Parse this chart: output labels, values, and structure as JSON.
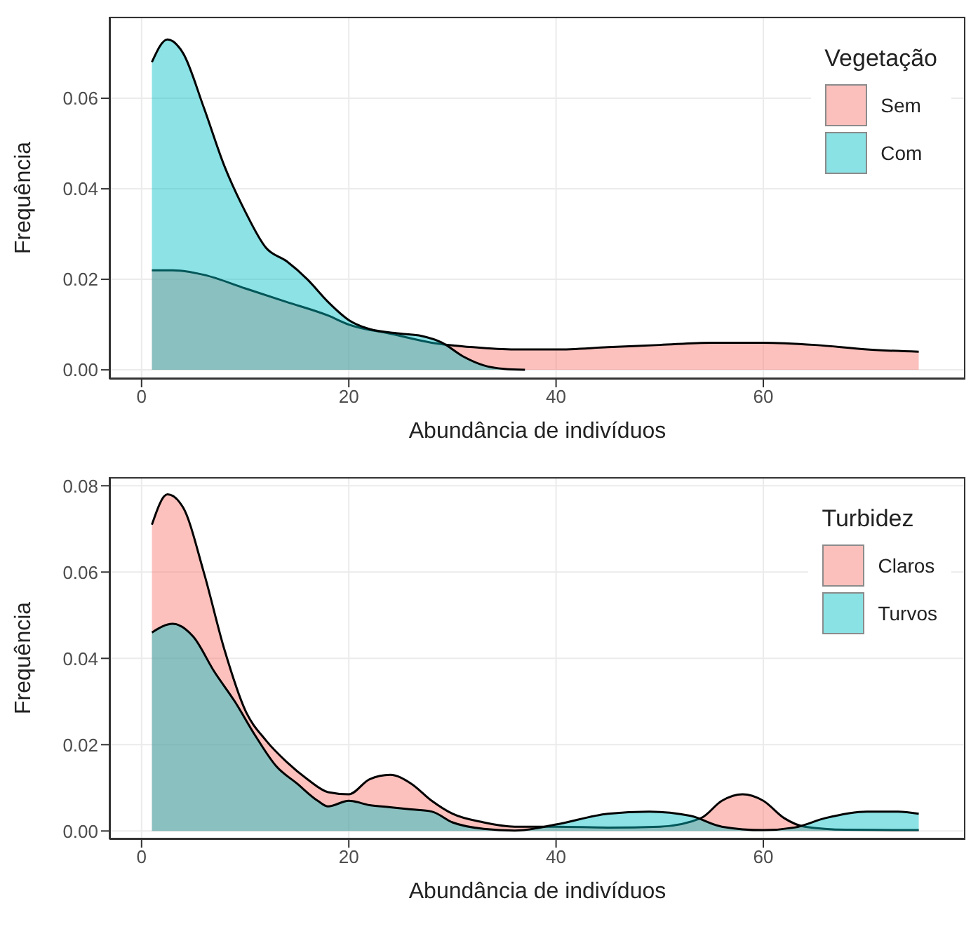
{
  "chart_data": [
    {
      "type": "area",
      "xlabel": "Abundância de indivíduos",
      "ylabel": "Frequência",
      "legend_title": "Vegetação",
      "legend": "top right",
      "grid": true,
      "xlim": [
        -3.1,
        79.5
      ],
      "xticks": [
        0,
        20,
        40,
        60
      ],
      "ylim": [
        -0.002,
        0.078
      ],
      "yticks": [
        {
          "value": 0,
          "label": "0.00"
        },
        {
          "value": 0.02,
          "label": "0.02"
        },
        {
          "value": 0.04,
          "label": "0.04"
        },
        {
          "value": 0.06,
          "label": "0.06"
        }
      ],
      "series": [
        {
          "name": "Sem",
          "color": "#f8766d",
          "x": [
            1,
            3,
            6,
            10,
            14,
            18,
            20,
            24,
            28,
            32,
            36,
            40,
            45,
            50,
            55,
            60,
            65,
            70,
            75
          ],
          "values": [
            0.022,
            0.022,
            0.021,
            0.018,
            0.015,
            0.012,
            0.01,
            0.008,
            0.006,
            0.005,
            0.0045,
            0.0045,
            0.005,
            0.0055,
            0.006,
            0.006,
            0.0055,
            0.0045,
            0.004
          ]
        },
        {
          "name": "Com",
          "color": "#00bfc4",
          "x": [
            1,
            2.5,
            4,
            6,
            8,
            10,
            12,
            14,
            16,
            18,
            20,
            22,
            25,
            27,
            29,
            31,
            33,
            35,
            37
          ],
          "values": [
            0.068,
            0.073,
            0.07,
            0.058,
            0.045,
            0.035,
            0.027,
            0.024,
            0.02,
            0.015,
            0.011,
            0.009,
            0.008,
            0.0075,
            0.006,
            0.003,
            0.001,
            0.0002,
            0
          ]
        }
      ]
    },
    {
      "type": "area",
      "xlabel": "Abundância de indivíduos",
      "ylabel": "Frequência",
      "legend_title": "Turbidez",
      "legend": "top right",
      "grid": true,
      "xlim": [
        -3.1,
        79.5
      ],
      "xticks": [
        0,
        20,
        40,
        60
      ],
      "ylim": [
        -0.0019,
        0.082
      ],
      "yticks": [
        {
          "value": 0,
          "label": "0.00"
        },
        {
          "value": 0.02,
          "label": "0.02"
        },
        {
          "value": 0.04,
          "label": "0.04"
        },
        {
          "value": 0.06,
          "label": "0.06"
        },
        {
          "value": 0.08,
          "label": "0.08"
        }
      ],
      "series": [
        {
          "name": "Claros",
          "color": "#f8766d",
          "x": [
            1,
            2.5,
            4,
            6,
            8,
            10,
            12,
            14,
            16,
            18,
            20,
            22,
            24,
            26,
            28,
            30,
            33,
            36,
            40,
            45,
            50,
            54,
            56,
            58,
            60,
            62,
            64,
            68,
            75
          ],
          "values": [
            0.071,
            0.078,
            0.075,
            0.06,
            0.042,
            0.028,
            0.021,
            0.016,
            0.012,
            0.009,
            0.0085,
            0.012,
            0.013,
            0.011,
            0.007,
            0.004,
            0.002,
            0.001,
            0.001,
            0.0008,
            0.001,
            0.003,
            0.007,
            0.0085,
            0.007,
            0.003,
            0.001,
            0.0003,
            0.0002
          ]
        },
        {
          "name": "Turvos",
          "color": "#00bfc4",
          "x": [
            1,
            3,
            5,
            7,
            9,
            11,
            13,
            15,
            17,
            18,
            20,
            22,
            24,
            26,
            28,
            30,
            33,
            36,
            40,
            45,
            49,
            53,
            56,
            60,
            63,
            66,
            70,
            73,
            75
          ],
          "values": [
            0.046,
            0.048,
            0.045,
            0.037,
            0.03,
            0.022,
            0.015,
            0.011,
            0.007,
            0.0057,
            0.007,
            0.006,
            0.0055,
            0.005,
            0.0045,
            0.002,
            0.0005,
            0.0001,
            0.0015,
            0.004,
            0.0045,
            0.0035,
            0.001,
            0.0002,
            0.0008,
            0.003,
            0.0045,
            0.0045,
            0.004
          ]
        }
      ]
    }
  ]
}
